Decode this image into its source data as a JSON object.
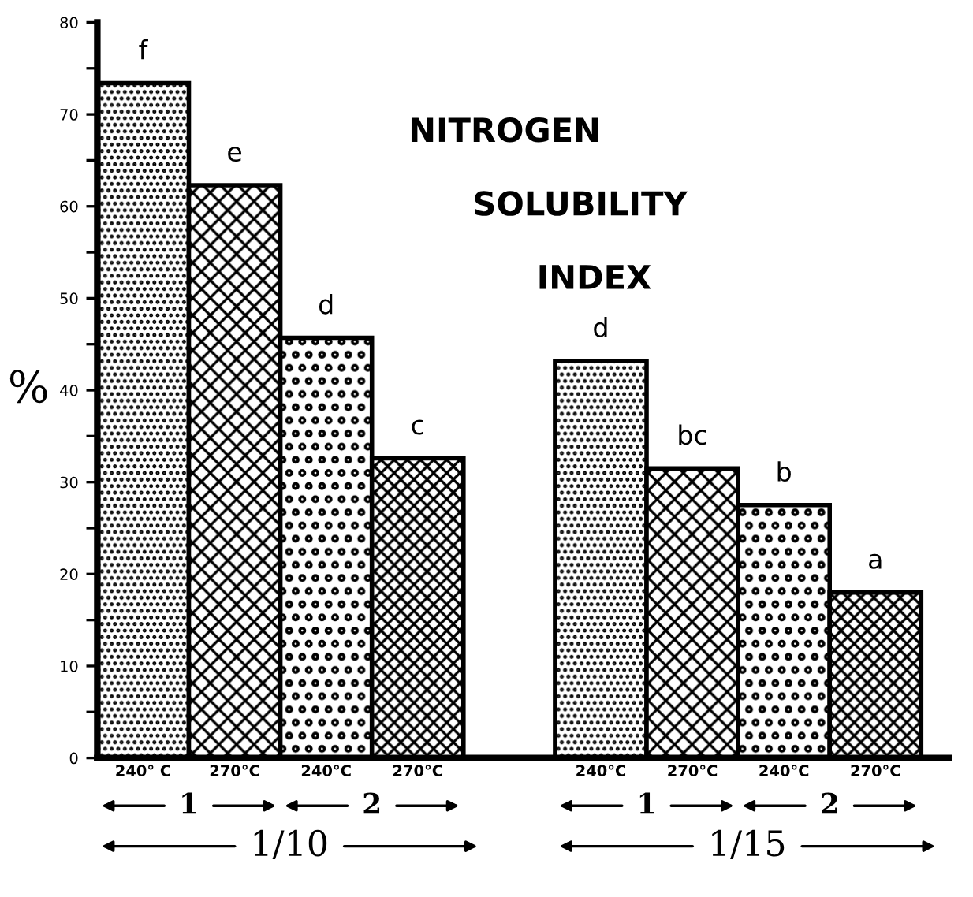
{
  "chart_data": {
    "type": "bar",
    "title": "NITROGEN SOLUBILITY INDEX",
    "ylabel": "%",
    "categories": [
      "240° C",
      "270°C",
      "240°C",
      "270°C",
      null,
      "240°C",
      "270°C",
      "240°C",
      "270°C"
    ],
    "values": [
      73.4,
      62.3,
      45.7,
      32.6,
      null,
      43.2,
      31.5,
      27.5,
      18.0
    ],
    "colors": [
      "#000000",
      "#000000",
      "#000000",
      "#000000",
      "#000000",
      "#000000",
      "#000000",
      "#000000",
      "#000000"
    ],
    "value_labels": [
      "f",
      "e",
      "d",
      "c",
      null,
      "d",
      "bc",
      "b",
      "a"
    ],
    "ylim": [
      0,
      80
    ],
    "yticks": [
      0,
      {
        "value": 5,
        "label": null
      },
      10,
      {
        "value": 15,
        "label": null
      },
      20,
      {
        "value": 25,
        "label": null
      },
      30,
      {
        "value": 35,
        "label": null
      },
      40,
      {
        "value": 45,
        "label": null
      },
      50,
      {
        "value": 55,
        "label": null
      },
      60,
      {
        "value": 65,
        "label": null
      },
      70,
      {
        "value": 75,
        "label": null
      },
      80
    ],
    "annotations": [
      "1",
      "2",
      "1/10",
      "1",
      "2",
      "1/15"
    ],
    "grid": false,
    "legend": false
  }
}
